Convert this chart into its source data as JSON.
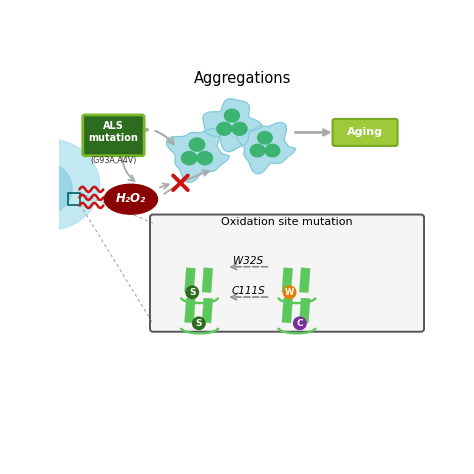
{
  "title": "Aggregations",
  "bg_color": "#ffffff",
  "als_box_color": "#2d6b1f",
  "als_text": "ALS\nmutation",
  "als_sub": "(G93A,A4V)",
  "aging_box_color": "#9dc93a",
  "aging_text": "Aging",
  "h2o2_color": "#8b0000",
  "h2o2_text": "H₂O₂",
  "oxidation_title": "Oxidation site mutation",
  "w32s_label": "W32S",
  "c111s_label": "C111S",
  "s_color_green": "#2d6b1f",
  "s_color_purple": "#7b2d9e",
  "w_color_orange": "#e67e00",
  "arrow_color": "#aaaaaa",
  "blob_light_blue": "#a8dce8",
  "blob_stroke": "#7ec8d8",
  "clover_color": "#3cb371",
  "sod_green": "#5cc85c",
  "red_x_color": "#cc1111",
  "wavy_color": "#cc1111",
  "cell_outer": "#b8e4f0",
  "cell_inner": "#8acee0",
  "box_border": "#555555",
  "dashed_arrow": "#888888"
}
